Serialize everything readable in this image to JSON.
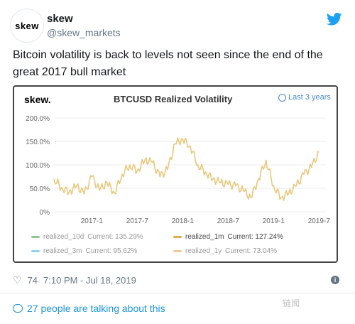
{
  "header": {
    "avatar_text": "skew",
    "name": "skew",
    "handle": "@skew_markets"
  },
  "tweet": {
    "text": "Bitcoin volatility is back to levels not seen since the end of the great 2017 bull market"
  },
  "card": {
    "logo": "skew.",
    "title": "BTCUSD Realized Volatility",
    "range_label": "Last 3 years"
  },
  "chart_data": {
    "type": "line",
    "title": "BTCUSD Realized Volatility",
    "xlabel": "",
    "ylabel": "",
    "ylim": [
      0,
      200
    ],
    "y_ticks": [
      "200.0%",
      "150.0%",
      "100.0%",
      "50.0%",
      "0%"
    ],
    "x_ticks": [
      "2017-1",
      "2017-7",
      "2018-1",
      "2018-7",
      "2019-1",
      "2019-7"
    ],
    "series": [
      {
        "name": "realized_1m",
        "color": "#e8c87a",
        "points": [
          [
            "2016-08",
            70
          ],
          [
            "2016-09",
            52
          ],
          [
            "2016-10",
            42
          ],
          [
            "2016-11",
            55
          ],
          [
            "2016-12",
            38
          ],
          [
            "2017-01",
            75
          ],
          [
            "2017-02",
            46
          ],
          [
            "2017-03",
            62
          ],
          [
            "2017-04",
            40
          ],
          [
            "2017-05",
            80
          ],
          [
            "2017-06",
            100
          ],
          [
            "2017-07",
            88
          ],
          [
            "2017-08",
            110
          ],
          [
            "2017-09",
            105
          ],
          [
            "2017-10",
            75
          ],
          [
            "2017-11",
            90
          ],
          [
            "2017-12",
            145
          ],
          [
            "2018-01",
            155
          ],
          [
            "2018-02",
            140
          ],
          [
            "2018-03",
            100
          ],
          [
            "2018-04",
            85
          ],
          [
            "2018-05",
            70
          ],
          [
            "2018-06",
            62
          ],
          [
            "2018-07",
            58
          ],
          [
            "2018-08",
            55
          ],
          [
            "2018-09",
            45
          ],
          [
            "2018-10",
            30
          ],
          [
            "2018-11",
            70
          ],
          [
            "2018-12",
            110
          ],
          [
            "2019-01",
            55
          ],
          [
            "2019-02",
            30
          ],
          [
            "2019-03",
            40
          ],
          [
            "2019-04",
            55
          ],
          [
            "2019-05",
            80
          ],
          [
            "2019-06",
            95
          ],
          [
            "2019-07",
            127
          ]
        ]
      }
    ],
    "legend": [
      {
        "name": "realized_10d",
        "current": "Current: 135.29%",
        "color": "#8dc98d",
        "active": false
      },
      {
        "name": "realized_1m",
        "current": "Current: 127.24%",
        "color": "#e8a94a",
        "active": true
      },
      {
        "name": "realized_3m",
        "current": "Current: 95.62%",
        "color": "#8fd3ef",
        "active": false
      },
      {
        "name": "realized_1y",
        "current": "Current: 73.04%",
        "color": "#f2c899",
        "active": false
      }
    ]
  },
  "footer": {
    "likes": "74",
    "timestamp": "7:10 PM - Jul 18, 2019",
    "talking": "27 people are talking about this",
    "watermark": "链闻"
  }
}
